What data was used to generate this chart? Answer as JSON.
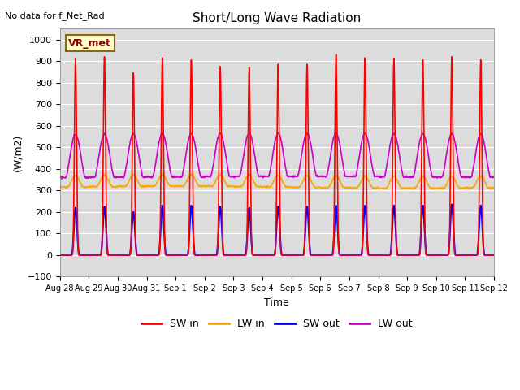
{
  "title": "Short/Long Wave Radiation",
  "no_data_text": "No data for f_Net_Rad",
  "station_label": "VR_met",
  "ylabel": "(W/m2)",
  "xlabel": "Time",
  "ylim": [
    -100,
    1050
  ],
  "yticks": [
    -100,
    0,
    100,
    200,
    300,
    400,
    500,
    600,
    700,
    800,
    900,
    1000
  ],
  "colors": {
    "SW_in": "#ff0000",
    "LW_in": "#ffa500",
    "SW_out": "#0000ff",
    "LW_out": "#cc00cc"
  },
  "bg_color": "#dcdcdc",
  "legend_labels": [
    "SW in",
    "LW in",
    "SW out",
    "LW out"
  ],
  "n_days": 15,
  "dt_hours": 0.25,
  "day_labels": [
    "Aug 28",
    "Aug 29",
    "Aug 30",
    "Aug 31",
    "Sep 1",
    "Sep 2",
    "Sep 3",
    "Sep 4",
    "Sep 5",
    "Sep 6",
    "Sep 7",
    "Sep 8",
    "Sep 9",
    "Sep 10",
    "Sep 11",
    "Sep 12"
  ]
}
